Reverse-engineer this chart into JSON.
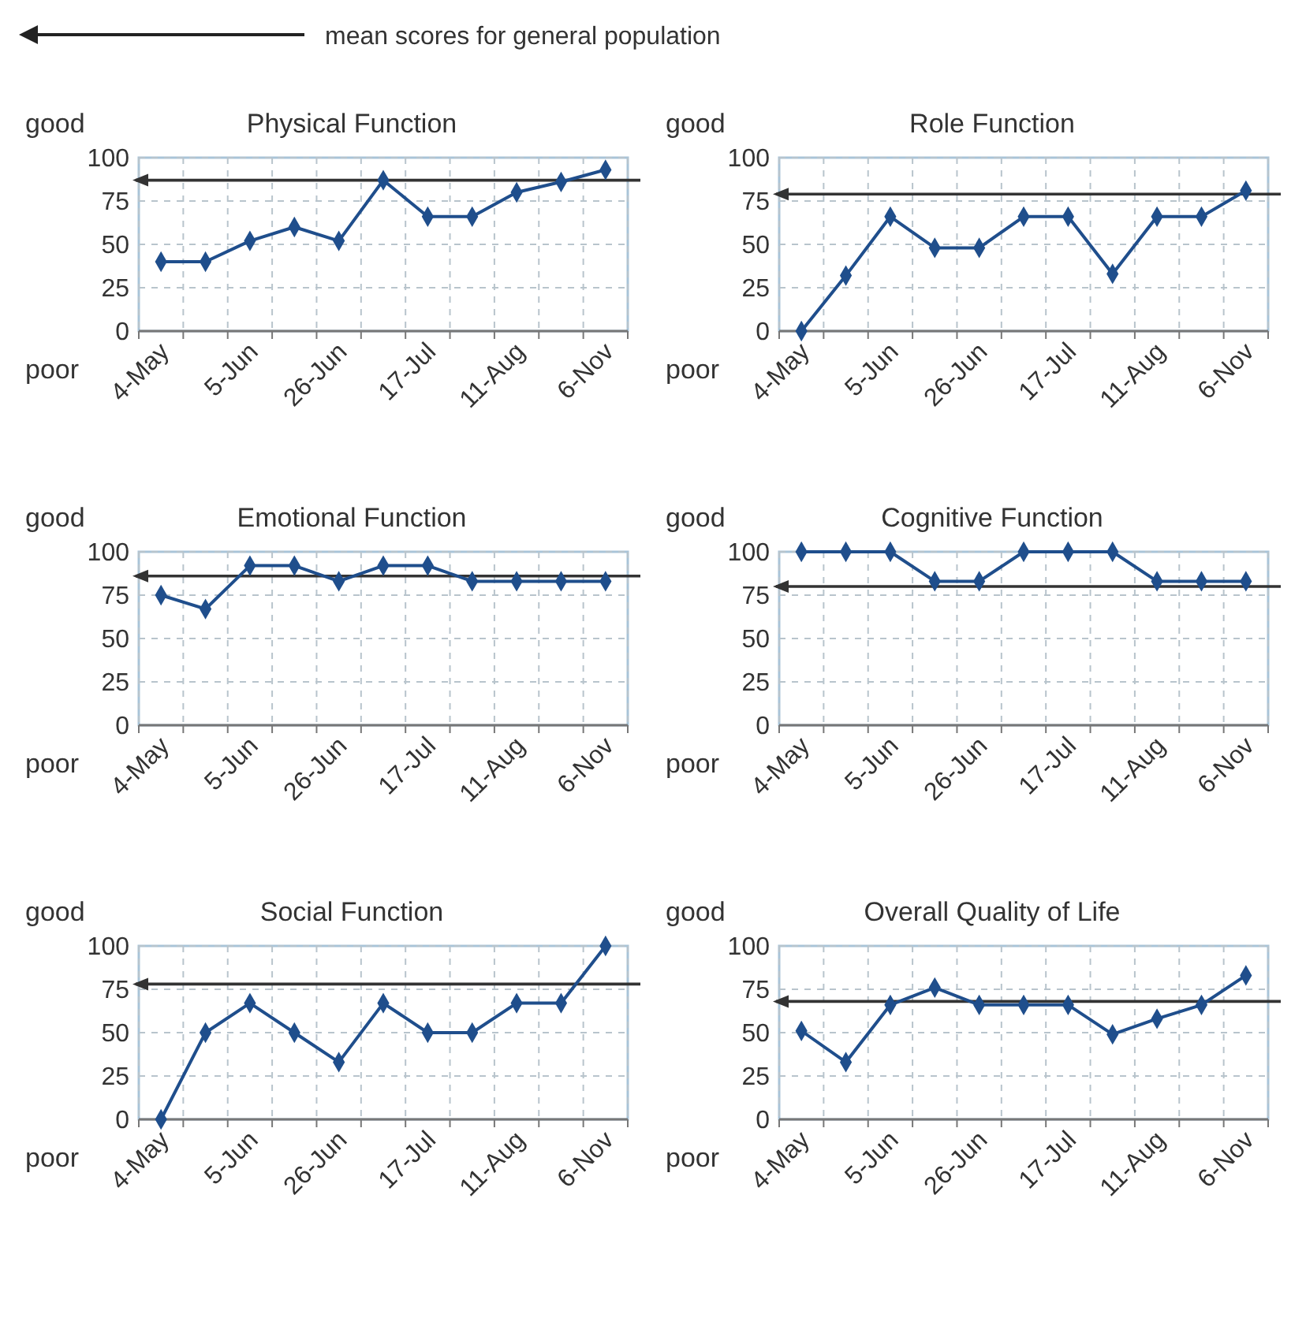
{
  "chart_data": [
    {
      "type": "line",
      "title": "Physical Function",
      "categories": [
        "4-May",
        null,
        "5-Jun",
        null,
        "26-Jun",
        null,
        "17-Jul",
        null,
        "11-Aug",
        null,
        "6-Nov"
      ],
      "series": [
        {
          "color": "#1f4e8c",
          "values": [
            40,
            40,
            52,
            60,
            52,
            87,
            66,
            66,
            80,
            86,
            93
          ]
        }
      ],
      "ylim": [
        0,
        100
      ],
      "yticks": [
        0,
        25,
        50,
        75,
        100
      ],
      "grid": true,
      "marker": "diamond",
      "ref_lines": [
        {
          "axis": "y",
          "value": 87
        }
      ],
      "annotations": [
        "good",
        "poor",
        "mean scores for general population"
      ]
    },
    {
      "type": "line",
      "title": "Role Function",
      "categories": [
        "4-May",
        null,
        "5-Jun",
        null,
        "26-Jun",
        null,
        "17-Jul",
        null,
        "11-Aug",
        null,
        "6-Nov"
      ],
      "series": [
        {
          "color": "#1f4e8c",
          "values": [
            0,
            32,
            66,
            48,
            48,
            66,
            66,
            33,
            66,
            66,
            81
          ]
        }
      ],
      "ylim": [
        0,
        100
      ],
      "yticks": [
        0,
        25,
        50,
        75,
        100
      ],
      "grid": true,
      "marker": "diamond",
      "ref_lines": [
        {
          "axis": "y",
          "value": 79
        }
      ],
      "annotations": [
        "good",
        "poor"
      ]
    },
    {
      "type": "line",
      "title": "Emotional Function",
      "categories": [
        "4-May",
        null,
        "5-Jun",
        null,
        "26-Jun",
        null,
        "17-Jul",
        null,
        "11-Aug",
        null,
        "6-Nov"
      ],
      "series": [
        {
          "color": "#1f4e8c",
          "values": [
            75,
            67,
            92,
            92,
            83,
            92,
            92,
            83,
            83,
            83,
            83
          ]
        }
      ],
      "ylim": [
        0,
        100
      ],
      "yticks": [
        0,
        25,
        50,
        75,
        100
      ],
      "grid": true,
      "marker": "diamond",
      "ref_lines": [
        {
          "axis": "y",
          "value": 86
        }
      ],
      "annotations": [
        "good",
        "poor"
      ]
    },
    {
      "type": "line",
      "title": "Cognitive Function",
      "categories": [
        "4-May",
        null,
        "5-Jun",
        null,
        "26-Jun",
        null,
        "17-Jul",
        null,
        "11-Aug",
        null,
        "6-Nov"
      ],
      "series": [
        {
          "color": "#1f4e8c",
          "values": [
            100,
            100,
            100,
            83,
            83,
            100,
            100,
            100,
            83,
            83,
            83
          ]
        }
      ],
      "ylim": [
        0,
        100
      ],
      "yticks": [
        0,
        25,
        50,
        75,
        100
      ],
      "grid": true,
      "marker": "diamond",
      "ref_lines": [
        {
          "axis": "y",
          "value": 80
        }
      ],
      "annotations": [
        "good",
        "poor"
      ]
    },
    {
      "type": "line",
      "title": "Social Function",
      "categories": [
        "4-May",
        null,
        "5-Jun",
        null,
        "26-Jun",
        null,
        "17-Jul",
        null,
        "11-Aug",
        null,
        "6-Nov"
      ],
      "series": [
        {
          "color": "#1f4e8c",
          "values": [
            0,
            50,
            67,
            50,
            33,
            67,
            50,
            50,
            67,
            67,
            100
          ]
        }
      ],
      "ylim": [
        0,
        100
      ],
      "yticks": [
        0,
        25,
        50,
        75,
        100
      ],
      "grid": true,
      "marker": "diamond",
      "ref_lines": [
        {
          "axis": "y",
          "value": 78
        }
      ],
      "annotations": [
        "good",
        "poor"
      ]
    },
    {
      "type": "line",
      "title": "Overall Quality of Life",
      "categories": [
        "4-May",
        null,
        "5-Jun",
        null,
        "26-Jun",
        null,
        "17-Jul",
        null,
        "11-Aug",
        null,
        "6-Nov"
      ],
      "series": [
        {
          "color": "#1f4e8c",
          "values": [
            51,
            33,
            66,
            76,
            66,
            66,
            66,
            49,
            58,
            66,
            83
          ]
        }
      ],
      "ylim": [
        0,
        100
      ],
      "yticks": [
        0,
        25,
        50,
        75,
        100
      ],
      "grid": true,
      "marker": "diamond",
      "ref_lines": [
        {
          "axis": "y",
          "value": 68
        }
      ],
      "annotations": [
        "good",
        "poor"
      ]
    }
  ]
}
